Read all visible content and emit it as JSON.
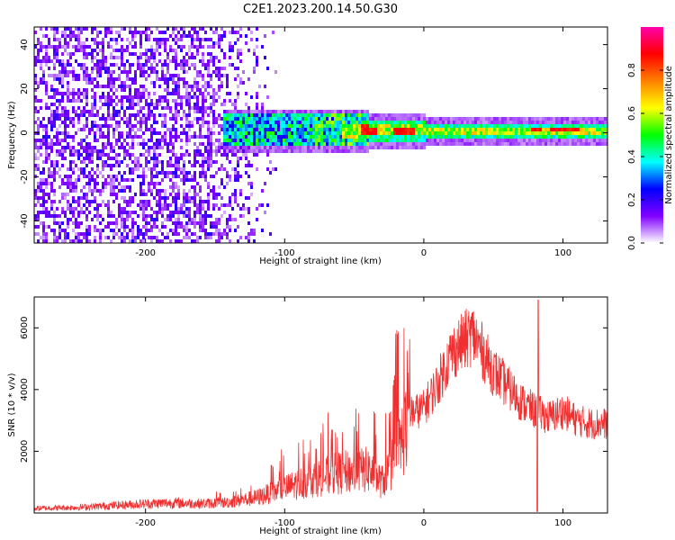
{
  "title": "C2E1.2023.200.14.50.G30",
  "chart_data": [
    {
      "type": "heatmap",
      "xlabel": "Height of straight line (km)",
      "ylabel": "Frequency (Hz)",
      "xlim": [
        -280,
        132
      ],
      "ylim": [
        -50,
        48
      ],
      "xticks": [
        -200,
        -100,
        0,
        100
      ],
      "xtick_labels": [
        "-200",
        "-100",
        "0",
        "100"
      ],
      "yticks": [
        -40,
        -20,
        0,
        20,
        40
      ],
      "ytick_labels": [
        "-40",
        "-20",
        "0",
        "20",
        "40"
      ],
      "grid": false,
      "colorbar": {
        "label": "Normalized spectral amplitude",
        "range": [
          0,
          1
        ],
        "ticks": [
          0,
          0.2,
          0.4,
          0.6,
          0.8
        ],
        "tick_labels": [
          "0.0",
          "0.2",
          "0.4",
          "0.6",
          "0.8"
        ],
        "colors": [
          "#ffffff",
          "#8000ff",
          "#0000ff",
          "#00ffff",
          "#00ff00",
          "#ffff00",
          "#ff8000",
          "#ff0000",
          "#ff00aa"
        ]
      },
      "features": {
        "noise_region_x": [
          -280,
          -120
        ],
        "signal_band_x": [
          -145,
          132
        ],
        "signal_band_center_hz": 1
      }
    },
    {
      "type": "line",
      "xlabel": "Height of straight line (km)",
      "ylabel": "SNR (10 * v/v)",
      "xlim": [
        -280,
        132
      ],
      "ylim": [
        0,
        7000
      ],
      "xticks": [
        -200,
        -100,
        0,
        100
      ],
      "xtick_labels": [
        "-200",
        "-100",
        "0",
        "100"
      ],
      "yticks": [
        2000,
        4000,
        6000
      ],
      "ytick_labels": [
        "2000",
        "4000",
        "6000"
      ],
      "grid": false,
      "color": "#f03030",
      "x": [
        -280,
        -250,
        -220,
        -200,
        -180,
        -160,
        -140,
        -120,
        -100,
        -80,
        -60,
        -40,
        -30,
        -20,
        -10,
        0,
        10,
        20,
        30,
        35,
        40,
        50,
        60,
        70,
        80,
        90,
        100,
        110,
        120,
        132
      ],
      "y": [
        150,
        180,
        250,
        300,
        330,
        300,
        350,
        500,
        800,
        1100,
        1300,
        1400,
        1000,
        1800,
        3200,
        3400,
        4200,
        5200,
        5600,
        5800,
        5400,
        4600,
        4100,
        3600,
        3300,
        3100,
        3300,
        3000,
        2900,
        2900
      ]
    }
  ]
}
